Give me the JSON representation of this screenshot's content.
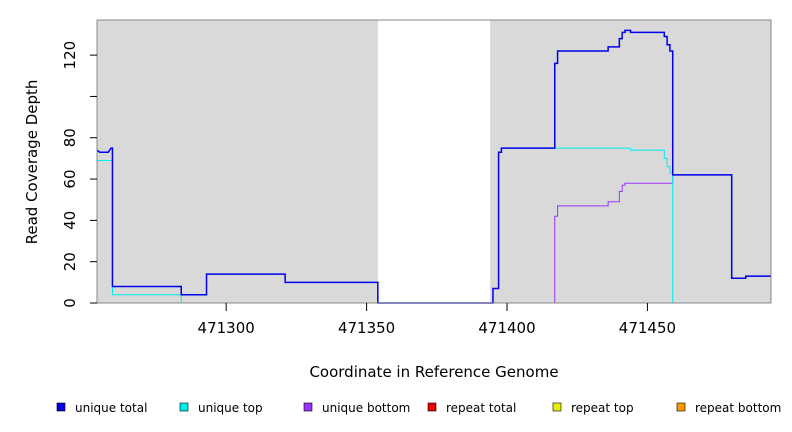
{
  "chart_data": {
    "type": "line",
    "title": "",
    "xlabel": "Coordinate in Reference Genome",
    "ylabel": "Read Coverage Depth",
    "xlim": [
      471254,
      471494
    ],
    "ylim": [
      0,
      137
    ],
    "x_ticks": [
      471300,
      471350,
      471400,
      471450
    ],
    "y_ticks": [
      0,
      20,
      40,
      60,
      80,
      100,
      120
    ],
    "y_tick_labels": [
      "0",
      "20",
      "40",
      "60",
      "80",
      "",
      "120"
    ],
    "shaded_regions": [
      [
        471254,
        471354
      ],
      [
        471394,
        471494
      ]
    ],
    "legend_position": "bottom",
    "series": [
      {
        "name": "unique total",
        "color": "#0000ee",
        "points": [
          [
            471254,
            74
          ],
          [
            471255,
            73
          ],
          [
            471258,
            73
          ],
          [
            471259,
            75
          ],
          [
            471259.5,
            75
          ],
          [
            471259.5,
            8
          ],
          [
            471284,
            8
          ],
          [
            471284,
            4
          ],
          [
            471293,
            4
          ],
          [
            471293,
            14
          ],
          [
            471321,
            14
          ],
          [
            471321,
            10
          ],
          [
            471354,
            10
          ],
          [
            471354,
            0
          ],
          [
            471395,
            0
          ],
          [
            471395,
            7
          ],
          [
            471397,
            7
          ],
          [
            471397,
            73
          ],
          [
            471398,
            73
          ],
          [
            471398,
            75
          ],
          [
            471417,
            75
          ],
          [
            471417,
            116
          ],
          [
            471418,
            116
          ],
          [
            471418,
            122
          ],
          [
            471436,
            122
          ],
          [
            471436,
            124
          ],
          [
            471440,
            124
          ],
          [
            471440,
            128
          ],
          [
            471441,
            128
          ],
          [
            471441,
            131
          ],
          [
            471442,
            131
          ],
          [
            471442,
            132
          ],
          [
            471444,
            132
          ],
          [
            471444,
            131
          ],
          [
            471456,
            131
          ],
          [
            471456,
            129
          ],
          [
            471457,
            129
          ],
          [
            471457,
            125
          ],
          [
            471458,
            125
          ],
          [
            471458,
            122
          ],
          [
            471459,
            122
          ],
          [
            471459,
            62
          ],
          [
            471480,
            62
          ],
          [
            471480,
            12
          ],
          [
            471485,
            12
          ],
          [
            471485,
            13
          ],
          [
            471494,
            13
          ]
        ]
      },
      {
        "name": "unique top",
        "color": "#00eeee",
        "points": [
          [
            471254,
            69
          ],
          [
            471259.5,
            69
          ],
          [
            471259.5,
            4
          ],
          [
            471284,
            4
          ],
          [
            471284,
            0
          ],
          [
            471395,
            0
          ],
          [
            471395,
            7
          ],
          [
            471397,
            7
          ],
          [
            471397,
            73
          ],
          [
            471398,
            73
          ],
          [
            471398,
            75
          ],
          [
            471444,
            75
          ],
          [
            471444,
            74
          ],
          [
            471456,
            74
          ],
          [
            471456,
            70
          ],
          [
            471457,
            70
          ],
          [
            471457,
            66
          ],
          [
            471458,
            66
          ],
          [
            471458,
            63
          ],
          [
            471459,
            63
          ],
          [
            471459,
            0
          ],
          [
            471494,
            0
          ]
        ]
      },
      {
        "name": "unique bottom",
        "color": "#9933ff",
        "points": [
          [
            471254,
            0
          ],
          [
            471417,
            0
          ],
          [
            471417,
            42
          ],
          [
            471418,
            42
          ],
          [
            471418,
            47
          ],
          [
            471436,
            47
          ],
          [
            471436,
            49
          ],
          [
            471440,
            49
          ],
          [
            471440,
            54
          ],
          [
            471441,
            54
          ],
          [
            471441,
            57
          ],
          [
            471442,
            57
          ],
          [
            471442,
            58
          ],
          [
            471459,
            58
          ],
          [
            471459,
            62
          ],
          [
            471480,
            62
          ],
          [
            471480,
            12
          ],
          [
            471485,
            12
          ],
          [
            471485,
            13
          ],
          [
            471494,
            13
          ]
        ]
      },
      {
        "name": "repeat total",
        "color": "#ee0000",
        "points": [
          [
            471254,
            0
          ],
          [
            471494,
            0
          ]
        ]
      },
      {
        "name": "repeat top",
        "color": "#eeee00",
        "points": [
          [
            471254,
            0
          ],
          [
            471494,
            0
          ]
        ]
      },
      {
        "name": "repeat bottom",
        "color": "#ff9900",
        "points": [
          [
            471254,
            0
          ],
          [
            471494,
            0
          ]
        ]
      }
    ]
  }
}
